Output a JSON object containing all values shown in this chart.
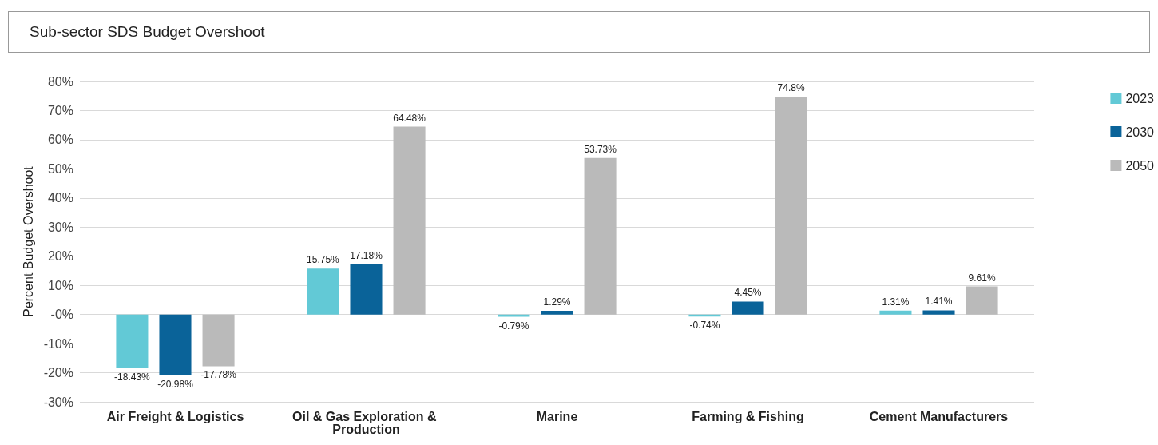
{
  "chart_data": {
    "type": "bar",
    "title": "Sub-sector SDS Budget Overshoot",
    "ylabel": "Percent Budget Overshoot",
    "categories": [
      "Air Freight & Logistics",
      "Oil & Gas Exploration & Production",
      "Marine",
      "Farming & Fishing",
      "Cement Manufacturers"
    ],
    "series": [
      {
        "name": "2023",
        "color": "#62c9d6",
        "values": [
          -18.43,
          15.75,
          -0.79,
          -0.74,
          1.31
        ],
        "value_labels": [
          "-18.43%",
          "15.75%",
          "-0.79%",
          "-0.74%",
          "1.31%"
        ]
      },
      {
        "name": "2030",
        "color": "#0a6399",
        "values": [
          -20.98,
          17.18,
          1.29,
          4.45,
          1.41
        ],
        "value_labels": [
          "-20.98%",
          "17.18%",
          "1.29%",
          "4.45%",
          "1.41%"
        ]
      },
      {
        "name": "2050",
        "color": "#bababa",
        "values": [
          -17.78,
          64.48,
          53.73,
          74.8,
          9.61
        ],
        "value_labels": [
          "-17.78%",
          "64.48%",
          "53.73%",
          "74.8%",
          "9.61%"
        ]
      }
    ],
    "ylim": [
      -30,
      80
    ],
    "yticks": [
      {
        "value": -30,
        "label": "-30%"
      },
      {
        "value": -20,
        "label": "-20%"
      },
      {
        "value": -10,
        "label": "-10%"
      },
      {
        "value": 0,
        "label": "-0%"
      },
      {
        "value": 10,
        "label": "10%"
      },
      {
        "value": 20,
        "label": "20%"
      },
      {
        "value": 30,
        "label": "30%"
      },
      {
        "value": 40,
        "label": "40%"
      },
      {
        "value": 50,
        "label": "50%"
      },
      {
        "value": 60,
        "label": "60%"
      },
      {
        "value": 70,
        "label": "70%"
      },
      {
        "value": 80,
        "label": "80%"
      }
    ],
    "grid": "y",
    "legend": "top right"
  }
}
